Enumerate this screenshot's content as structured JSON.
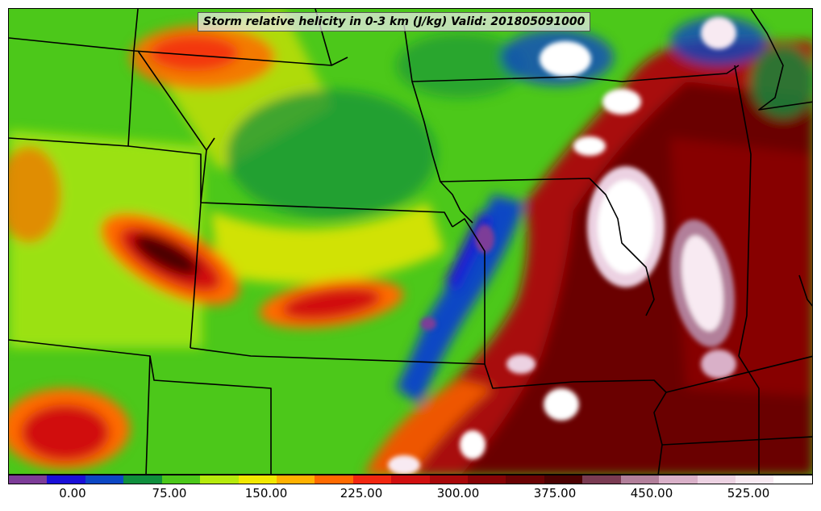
{
  "title": "Storm relative helicity in 0-3 km (J/kg) Valid: 201805091000",
  "colorbar": {
    "colors": [
      "#7d3c98",
      "#1a0fd8",
      "#0c47c4",
      "#0f8f3d",
      "#4cc81a",
      "#b6ea0c",
      "#f2e800",
      "#ffb100",
      "#ff6a00",
      "#f22710",
      "#d10f0f",
      "#a8080a",
      "#870306",
      "#6a0204",
      "#4c0102",
      "#7a3b52",
      "#b27f9a",
      "#d9b0c8",
      "#ecd2e2",
      "#f8eaf2",
      "#ffffff"
    ],
    "tick_labels": [
      "0.00",
      "75.00",
      "150.00",
      "225.00",
      "300.00",
      "375.00",
      "450.00",
      "525.00"
    ]
  },
  "map": {
    "field": "storm-relative-helicity",
    "boundaries": "us-state-lines"
  }
}
